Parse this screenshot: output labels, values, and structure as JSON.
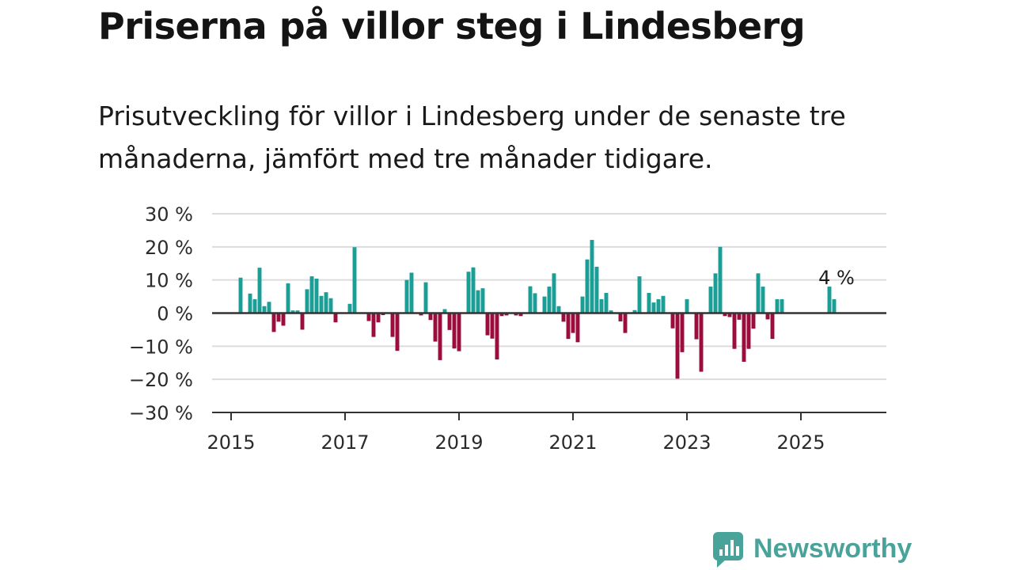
{
  "title": "Priserna på villor steg i Lindesberg",
  "subtitle": "Prisutveckling för villor i Lindesberg under de senaste tre månaderna, jämfört med tre månader tidigare.",
  "brand": {
    "name": "Newsworthy",
    "icon": "newsworthy-logo-icon",
    "color": "#4aa39a"
  },
  "colors": {
    "positive": "#1a9e95",
    "negative": "#9b0d3d",
    "grid": "#dcdcdc",
    "zero_line": "#333333"
  },
  "chart_data": {
    "type": "bar",
    "title": "Priserna på villor steg i Lindesberg",
    "xlabel": "",
    "ylabel": "",
    "ylim": [
      -30,
      30
    ],
    "y_ticks": [
      30,
      20,
      10,
      0,
      -10,
      -20,
      -30
    ],
    "y_tick_labels": [
      "30 %",
      "20 %",
      "10 %",
      "0 %",
      "−10 %",
      "−20 %",
      "−30 %"
    ],
    "x_ticks": [
      2015,
      2017,
      2019,
      2021,
      2023,
      2025
    ],
    "x_tick_labels": [
      "2015",
      "2017",
      "2019",
      "2021",
      "2023",
      "2025"
    ],
    "xlim": [
      "2014-09",
      "2026-07"
    ],
    "grid": true,
    "annotation": {
      "text": "4 %",
      "x": "2025-08",
      "y": 4
    },
    "x": [
      "2015-03",
      "2015-05",
      "2015-06",
      "2015-07",
      "2015-08",
      "2015-09",
      "2015-10",
      "2015-11",
      "2015-12",
      "2016-01",
      "2016-02",
      "2016-03",
      "2016-04",
      "2016-05",
      "2016-06",
      "2016-07",
      "2016-08",
      "2016-09",
      "2016-10",
      "2016-11",
      "2016-12",
      "2017-02",
      "2017-03",
      "2017-06",
      "2017-07",
      "2017-08",
      "2017-09",
      "2017-11",
      "2017-12",
      "2018-02",
      "2018-03",
      "2018-05",
      "2018-06",
      "2018-07",
      "2018-08",
      "2018-09",
      "2018-10",
      "2018-11",
      "2018-12",
      "2019-01",
      "2019-03",
      "2019-04",
      "2019-05",
      "2019-06",
      "2019-07",
      "2019-08",
      "2019-09",
      "2019-10",
      "2019-11",
      "2020-01",
      "2020-02",
      "2020-04",
      "2020-05",
      "2020-07",
      "2020-08",
      "2020-09",
      "2020-10",
      "2020-11",
      "2020-12",
      "2021-01",
      "2021-02",
      "2021-03",
      "2021-04",
      "2021-05",
      "2021-06",
      "2021-07",
      "2021-08",
      "2021-09",
      "2021-11",
      "2021-12",
      "2022-02",
      "2022-03",
      "2022-05",
      "2022-06",
      "2022-07",
      "2022-08",
      "2022-10",
      "2022-11",
      "2022-12",
      "2023-01",
      "2023-03",
      "2023-04",
      "2023-06",
      "2023-07",
      "2023-08",
      "2023-09",
      "2023-10",
      "2023-11",
      "2023-12",
      "2024-01",
      "2024-02",
      "2024-03",
      "2024-04",
      "2024-05",
      "2024-06",
      "2024-07",
      "2024-08",
      "2024-09",
      "2025-07",
      "2025-08"
    ],
    "values": [
      10.7,
      5.9,
      4.2,
      13.7,
      2.1,
      3.4,
      -5.7,
      -2.6,
      -3.8,
      9,
      0.8,
      0.8,
      -5,
      7.2,
      11.1,
      10.4,
      5.2,
      6.3,
      4.5,
      -2.8,
      0,
      2.8,
      19.9,
      -2.4,
      -7.2,
      -2.8,
      -0.6,
      -7.2,
      -11.4,
      10,
      12.2,
      -0.7,
      9.3,
      -2.1,
      -8.6,
      -14.2,
      1.2,
      -5.1,
      -10.7,
      -11.5,
      12.5,
      13.8,
      6.9,
      7.5,
      -6.7,
      -7.7,
      -14,
      -0.9,
      -0.7,
      -0.7,
      -0.9,
      8.1,
      6,
      5,
      8,
      12,
      2.1,
      -2.6,
      -7.8,
      -6,
      -8.8,
      5,
      16.2,
      22.1,
      14,
      4.2,
      6.1,
      0.8,
      -2.5,
      -6,
      0.9,
      11.1,
      6.1,
      3.2,
      4.2,
      5.2,
      -4.6,
      -19.8,
      -11.8,
      4.2,
      -7.9,
      -17.7,
      8,
      12,
      20,
      -0.9,
      -1.2,
      -10.8,
      -2,
      -14.7,
      -10.8,
      -4.7,
      12,
      8,
      -1.9,
      -7.8,
      4.2,
      4.2,
      8,
      4.2
    ]
  }
}
